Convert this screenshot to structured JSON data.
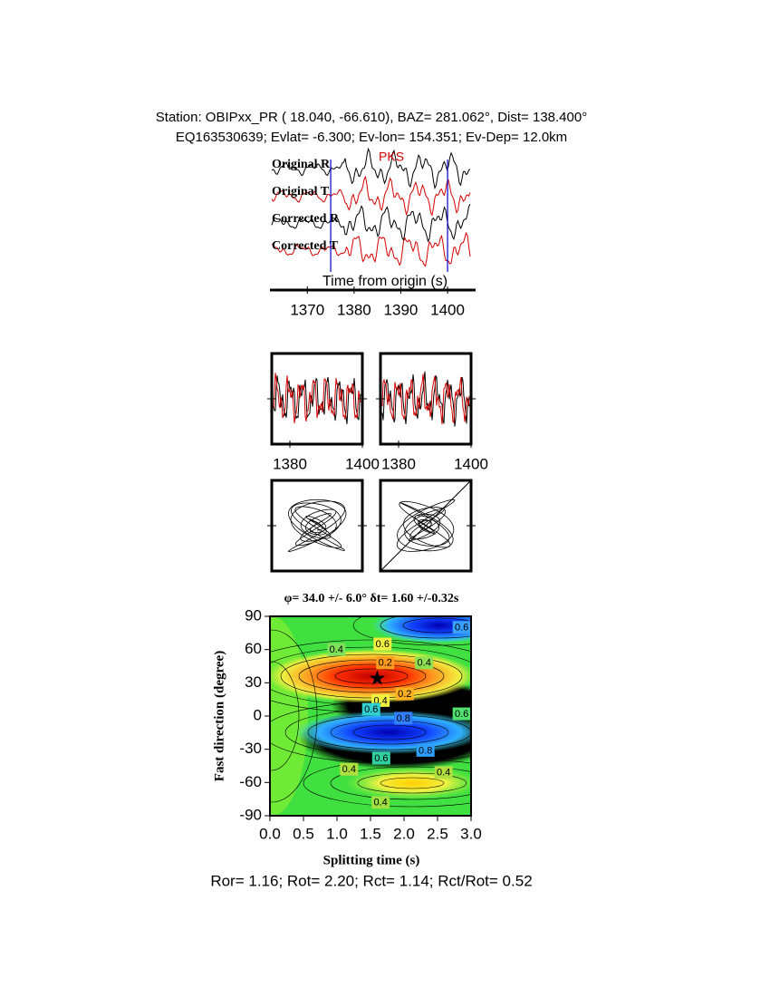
{
  "header": {
    "line1": "Station: OBIPxx_PR (  18.040,  -66.610), BAZ=  281.062°, Dist=  138.400°",
    "line2": "EQ163530639; Evlat=  -6.300; Ev-lon= 154.351; Ev-Dep= 12.0km"
  },
  "chart_data": [
    {
      "type": "waveform",
      "phase": "PKS",
      "phase_color": "#d40000",
      "traces": [
        {
          "name": "Original R",
          "color": "#000000"
        },
        {
          "name": "Original T",
          "color": "#d40000"
        },
        {
          "name": "Corrected R",
          "color": "#000000"
        },
        {
          "name": "Corrected T",
          "color": "#d40000"
        }
      ],
      "xlabel": "Time from origin (s)",
      "xlim": [
        1362,
        1406
      ],
      "xticks": [
        1370,
        1380,
        1390,
        1400
      ],
      "window": [
        1375,
        1400
      ],
      "window_color": "#0000cc"
    },
    {
      "type": "waveform-window",
      "xlim": [
        1375,
        1400
      ],
      "xticks": [
        1380,
        1400
      ]
    },
    {
      "type": "waveform-window",
      "xlim": [
        1375,
        1400
      ],
      "xticks": [
        1380,
        1400
      ]
    },
    {
      "type": "contour",
      "title": "φ= 34.0 +/- 6.0° δt= 1.60 +/-0.32s",
      "xlabel": "Splitting time (s)",
      "ylabel": "Fast direction (degree)",
      "xlim": [
        0,
        3
      ],
      "ylim": [
        -90,
        90
      ],
      "xticks": [
        {
          "value": 0,
          "label": "0.0"
        },
        0.5,
        {
          "value": 1,
          "label": "1.0"
        },
        1.5,
        {
          "value": 2,
          "label": "2.0"
        },
        2.5,
        {
          "value": 3,
          "label": "3.0"
        }
      ],
      "yticks": [
        -90,
        -60,
        -30,
        0,
        30,
        60,
        90
      ],
      "best": {
        "x": 1.6,
        "y": 34
      },
      "contour_labels": [
        {
          "x": 0.99,
          "y": 60,
          "level": 0.4,
          "color": "#7fe05a"
        },
        {
          "x": 1.68,
          "y": 65,
          "level": 0.6,
          "color": "#f0f040"
        },
        {
          "x": 2.86,
          "y": 80,
          "level": 0.6,
          "color": "#3aa0ff"
        },
        {
          "x": 1.72,
          "y": 48,
          "level": 0.2,
          "color": "#ff9a20"
        },
        {
          "x": 2.3,
          "y": 48,
          "level": 0.4,
          "color": "#8ee050"
        },
        {
          "x": 1.65,
          "y": 14,
          "level": 0.4,
          "color": "#f0f040"
        },
        {
          "x": 2.01,
          "y": 20,
          "level": 0.2,
          "color": "#ffb020"
        },
        {
          "x": 1.51,
          "y": 6,
          "level": 0.6,
          "color": "#30d0d0"
        },
        {
          "x": 1.99,
          "y": -2,
          "level": 0.8,
          "color": "#3080ff"
        },
        {
          "x": 2.86,
          "y": 2,
          "level": 0.6,
          "color": "#50e070"
        },
        {
          "x": 1.66,
          "y": -38,
          "level": 0.6,
          "color": "#30d0a0"
        },
        {
          "x": 2.32,
          "y": -31,
          "level": 0.8,
          "color": "#30a0ff"
        },
        {
          "x": 1.18,
          "y": -48,
          "level": 0.4,
          "color": "#b0e040"
        },
        {
          "x": 2.59,
          "y": -51,
          "level": 0.4,
          "color": "#b0e040"
        },
        {
          "x": 1.65,
          "y": -78,
          "level": 0.4,
          "color": "#a0e040"
        }
      ]
    }
  ],
  "footer": "Ror= 1.16; Rot= 2.20; Rct= 1.14; Rct/Rot= 0.52"
}
